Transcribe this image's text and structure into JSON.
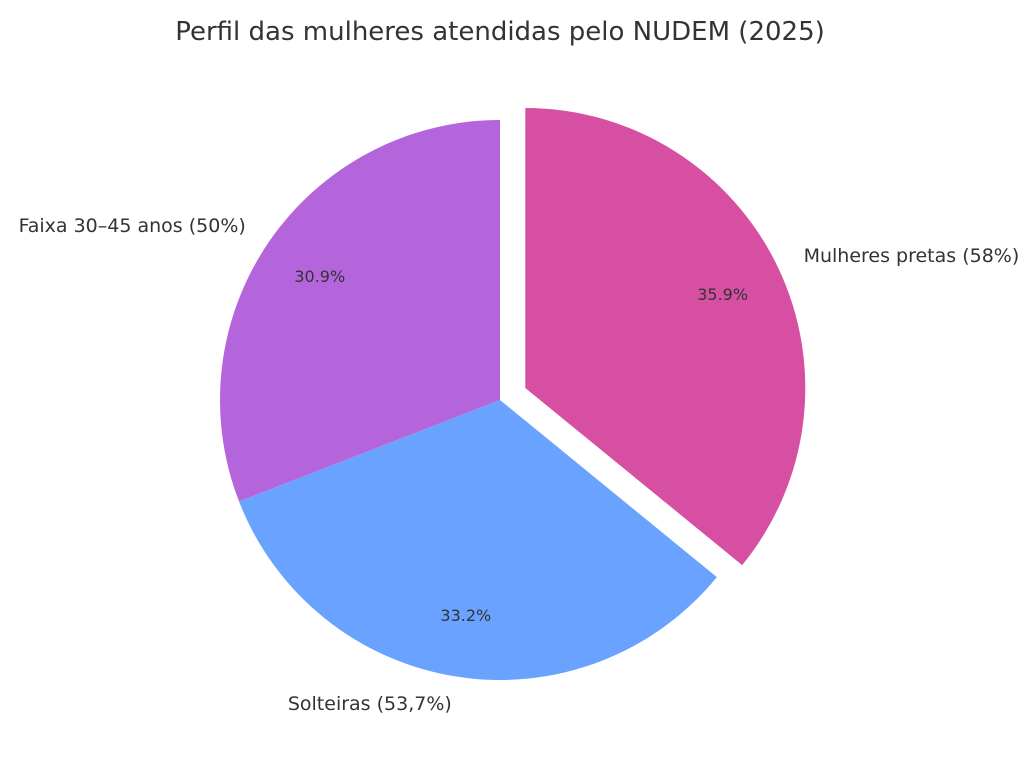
{
  "chart_data": {
    "type": "pie",
    "title": "Perfil das mulheres atendidas pelo NUDEM (2025)",
    "slices": [
      {
        "label": "Mulheres pretas (58%)",
        "value": 35.9,
        "pct_label": "35.9%",
        "color": "#D64FA3",
        "exploded": true
      },
      {
        "label": "Solteiras (53,7%)",
        "value": 33.2,
        "pct_label": "33.2%",
        "color": "#6AA3FF",
        "exploded": false
      },
      {
        "label": "Faixa 30–45 anos (50%)",
        "value": 30.9,
        "pct_label": "30.9%",
        "color": "#B565DB",
        "exploded": false
      }
    ],
    "start_angle_deg": 90,
    "direction": "clockwise",
    "legend": "none"
  }
}
